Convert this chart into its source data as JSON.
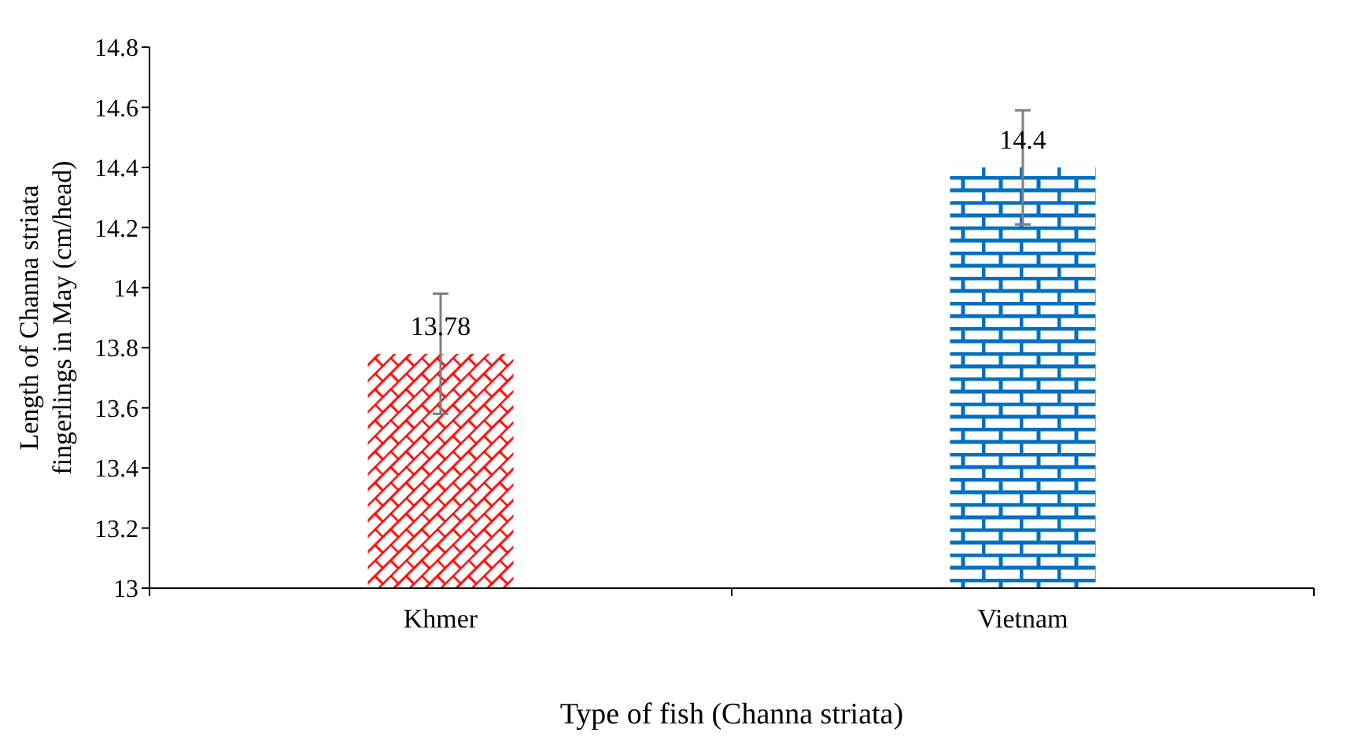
{
  "chart_data": {
    "type": "bar",
    "xlabel": "Type of fish (Channa striata)",
    "ylabel": "Length of Channa striata fingerlings in May (cm/head)",
    "categories": [
      "Khmer",
      "Vietnam"
    ],
    "values": [
      13.78,
      14.4
    ],
    "errors": [
      0.2,
      0.19
    ],
    "colors": [
      "#ff0000",
      "#0070c0"
    ],
    "ylim": [
      13,
      14.8
    ],
    "yticks": [
      13,
      13.2,
      13.4,
      13.6,
      13.8,
      14,
      14.2,
      14.4,
      14.6,
      14.8
    ],
    "data_labels": true,
    "grid": false,
    "legend": false
  }
}
